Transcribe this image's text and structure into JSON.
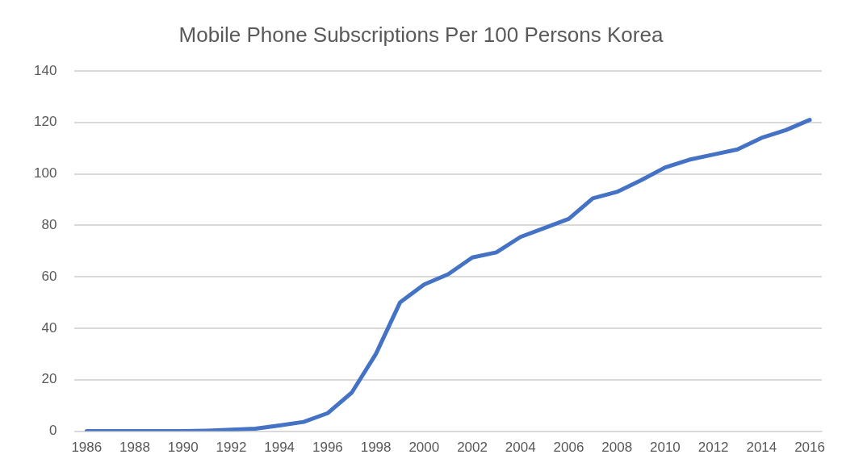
{
  "chart_data": {
    "type": "line",
    "title": "Mobile Phone Subscriptions Per 100 Persons Korea",
    "categories": [
      "1986",
      null,
      "1988",
      null,
      "1990",
      null,
      "1992",
      null,
      "1994",
      null,
      "1996",
      null,
      "1998",
      null,
      "2000",
      null,
      "2002",
      null,
      "2004",
      null,
      "2006",
      null,
      "2008",
      null,
      "2010",
      null,
      "2012",
      null,
      "2014",
      null,
      "2016"
    ],
    "series": [
      {
        "color": "#4472c4",
        "values": [
          0,
          0,
          0,
          0,
          0,
          0.2,
          0.6,
          1,
          2.2,
          3.6,
          7,
          15,
          30,
          50,
          57,
          61,
          67.5,
          69.5,
          75.5,
          79,
          82.5,
          90.5,
          93,
          97.5,
          102.5,
          105.5,
          107.5,
          109.5,
          114,
          117,
          121
        ]
      }
    ],
    "ylim": [
      0,
      140
    ],
    "yticks": [
      0,
      20,
      40,
      60,
      80,
      100,
      120,
      140
    ],
    "grid": "y",
    "legend": false,
    "marker": "none",
    "line_style": "solid"
  }
}
